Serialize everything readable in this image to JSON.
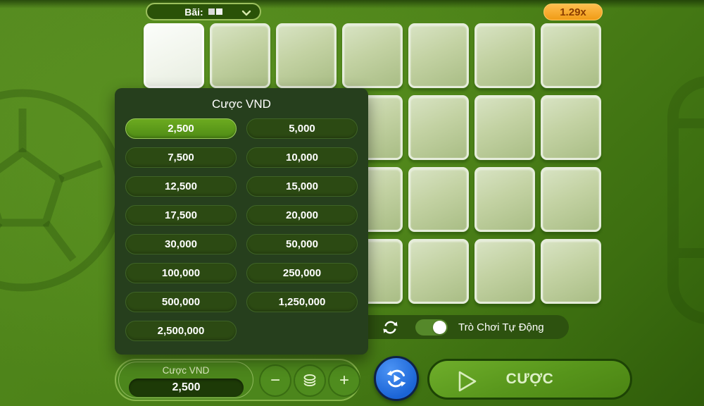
{
  "top_bar": {
    "field_label": "Bãi:",
    "field_mines_count": 2,
    "multiplier": "1.29x"
  },
  "board": {
    "rows": 4,
    "cols": 7,
    "active_tile_index": 0
  },
  "bet_popup": {
    "title": "Cược VND",
    "selected_option": "2,500",
    "options": [
      "2,500",
      "5,000",
      "7,500",
      "10,000",
      "12,500",
      "15,000",
      "17,500",
      "20,000",
      "30,000",
      "50,000",
      "100,000",
      "250,000",
      "500,000",
      "1,250,000",
      "2,500,000"
    ]
  },
  "auto_play": {
    "label": "Trò Chơi Tự Động",
    "enabled": true
  },
  "bet_controls": {
    "label": "Cược VND",
    "amount": "2,500",
    "minus_label": "−",
    "plus_label": "+"
  },
  "actions": {
    "bet_label": "CƯỢC"
  },
  "colors": {
    "accent_orange": "#F5A623",
    "accent_blue": "#1E6FE0",
    "selected_green": "#5FA01C",
    "panel_dark_green": "#263F1D"
  }
}
